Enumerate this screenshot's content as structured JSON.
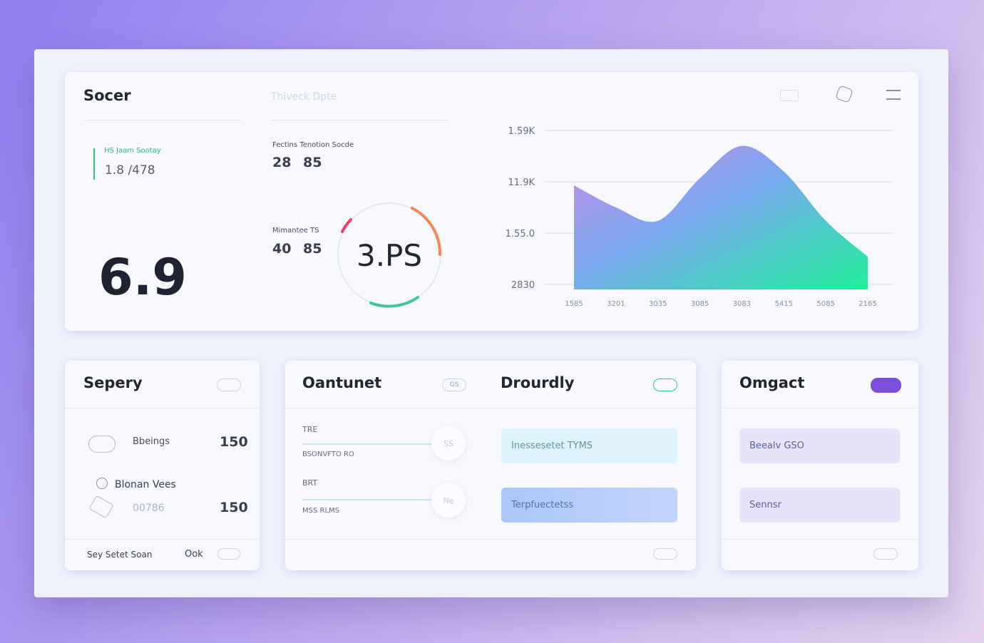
{
  "header": {
    "title": "Socer",
    "subtitle": "Thiveck Dpte"
  },
  "stat": {
    "label": "HS  Jaam Sootay",
    "value": "1.8 /478"
  },
  "big_value": "6.9",
  "metrics": [
    {
      "label": "Fectins Tenotion Socde",
      "a": "28",
      "b": "85"
    },
    {
      "label": "Mimantee TS",
      "a": "40",
      "b": "85"
    }
  ],
  "gauge": "3.PS",
  "area_chart": {
    "type": "area",
    "categories": [
      "1585",
      "3201",
      "3035",
      "3085",
      "3083",
      "5415",
      "5085",
      "2165"
    ],
    "values": [
      1.93,
      1.5,
      1.24,
      2.07,
      2.7,
      2.2,
      1.24,
      0.54
    ],
    "ylim": [
      0,
      3
    ],
    "yticks": [
      {
        "value": 0,
        "label": "2830"
      },
      {
        "value": 1,
        "label": "1.55.0"
      },
      {
        "value": 2,
        "label": "11.9K"
      },
      {
        "value": 3,
        "label": "1.59K"
      }
    ],
    "grid": true
  },
  "cards": {
    "sepery": {
      "title": "Sepery",
      "rows": [
        {
          "label": "Bbeings",
          "value": "150"
        },
        {
          "label": "Blonan Vees",
          "sub": "00786",
          "value": "150"
        }
      ],
      "footer": "Sey Setet Soan",
      "footer_action": "Ook"
    },
    "oantunet": {
      "title": "Oantunet",
      "badge": "GS",
      "rows": [
        {
          "label": "TRE",
          "sub": "BSONVFTO RO",
          "knob": "SS"
        },
        {
          "label": "BRT",
          "sub": "MSS RLMS",
          "knob": "Ne"
        }
      ]
    },
    "drourdly": {
      "title": "Drourdly",
      "buttons": [
        "Inessesetet TYMS",
        "Terpfuectetss"
      ]
    },
    "omgact": {
      "title": "Omgact",
      "buttons": [
        "Beealv GSO",
        "Sennsr"
      ]
    }
  }
}
